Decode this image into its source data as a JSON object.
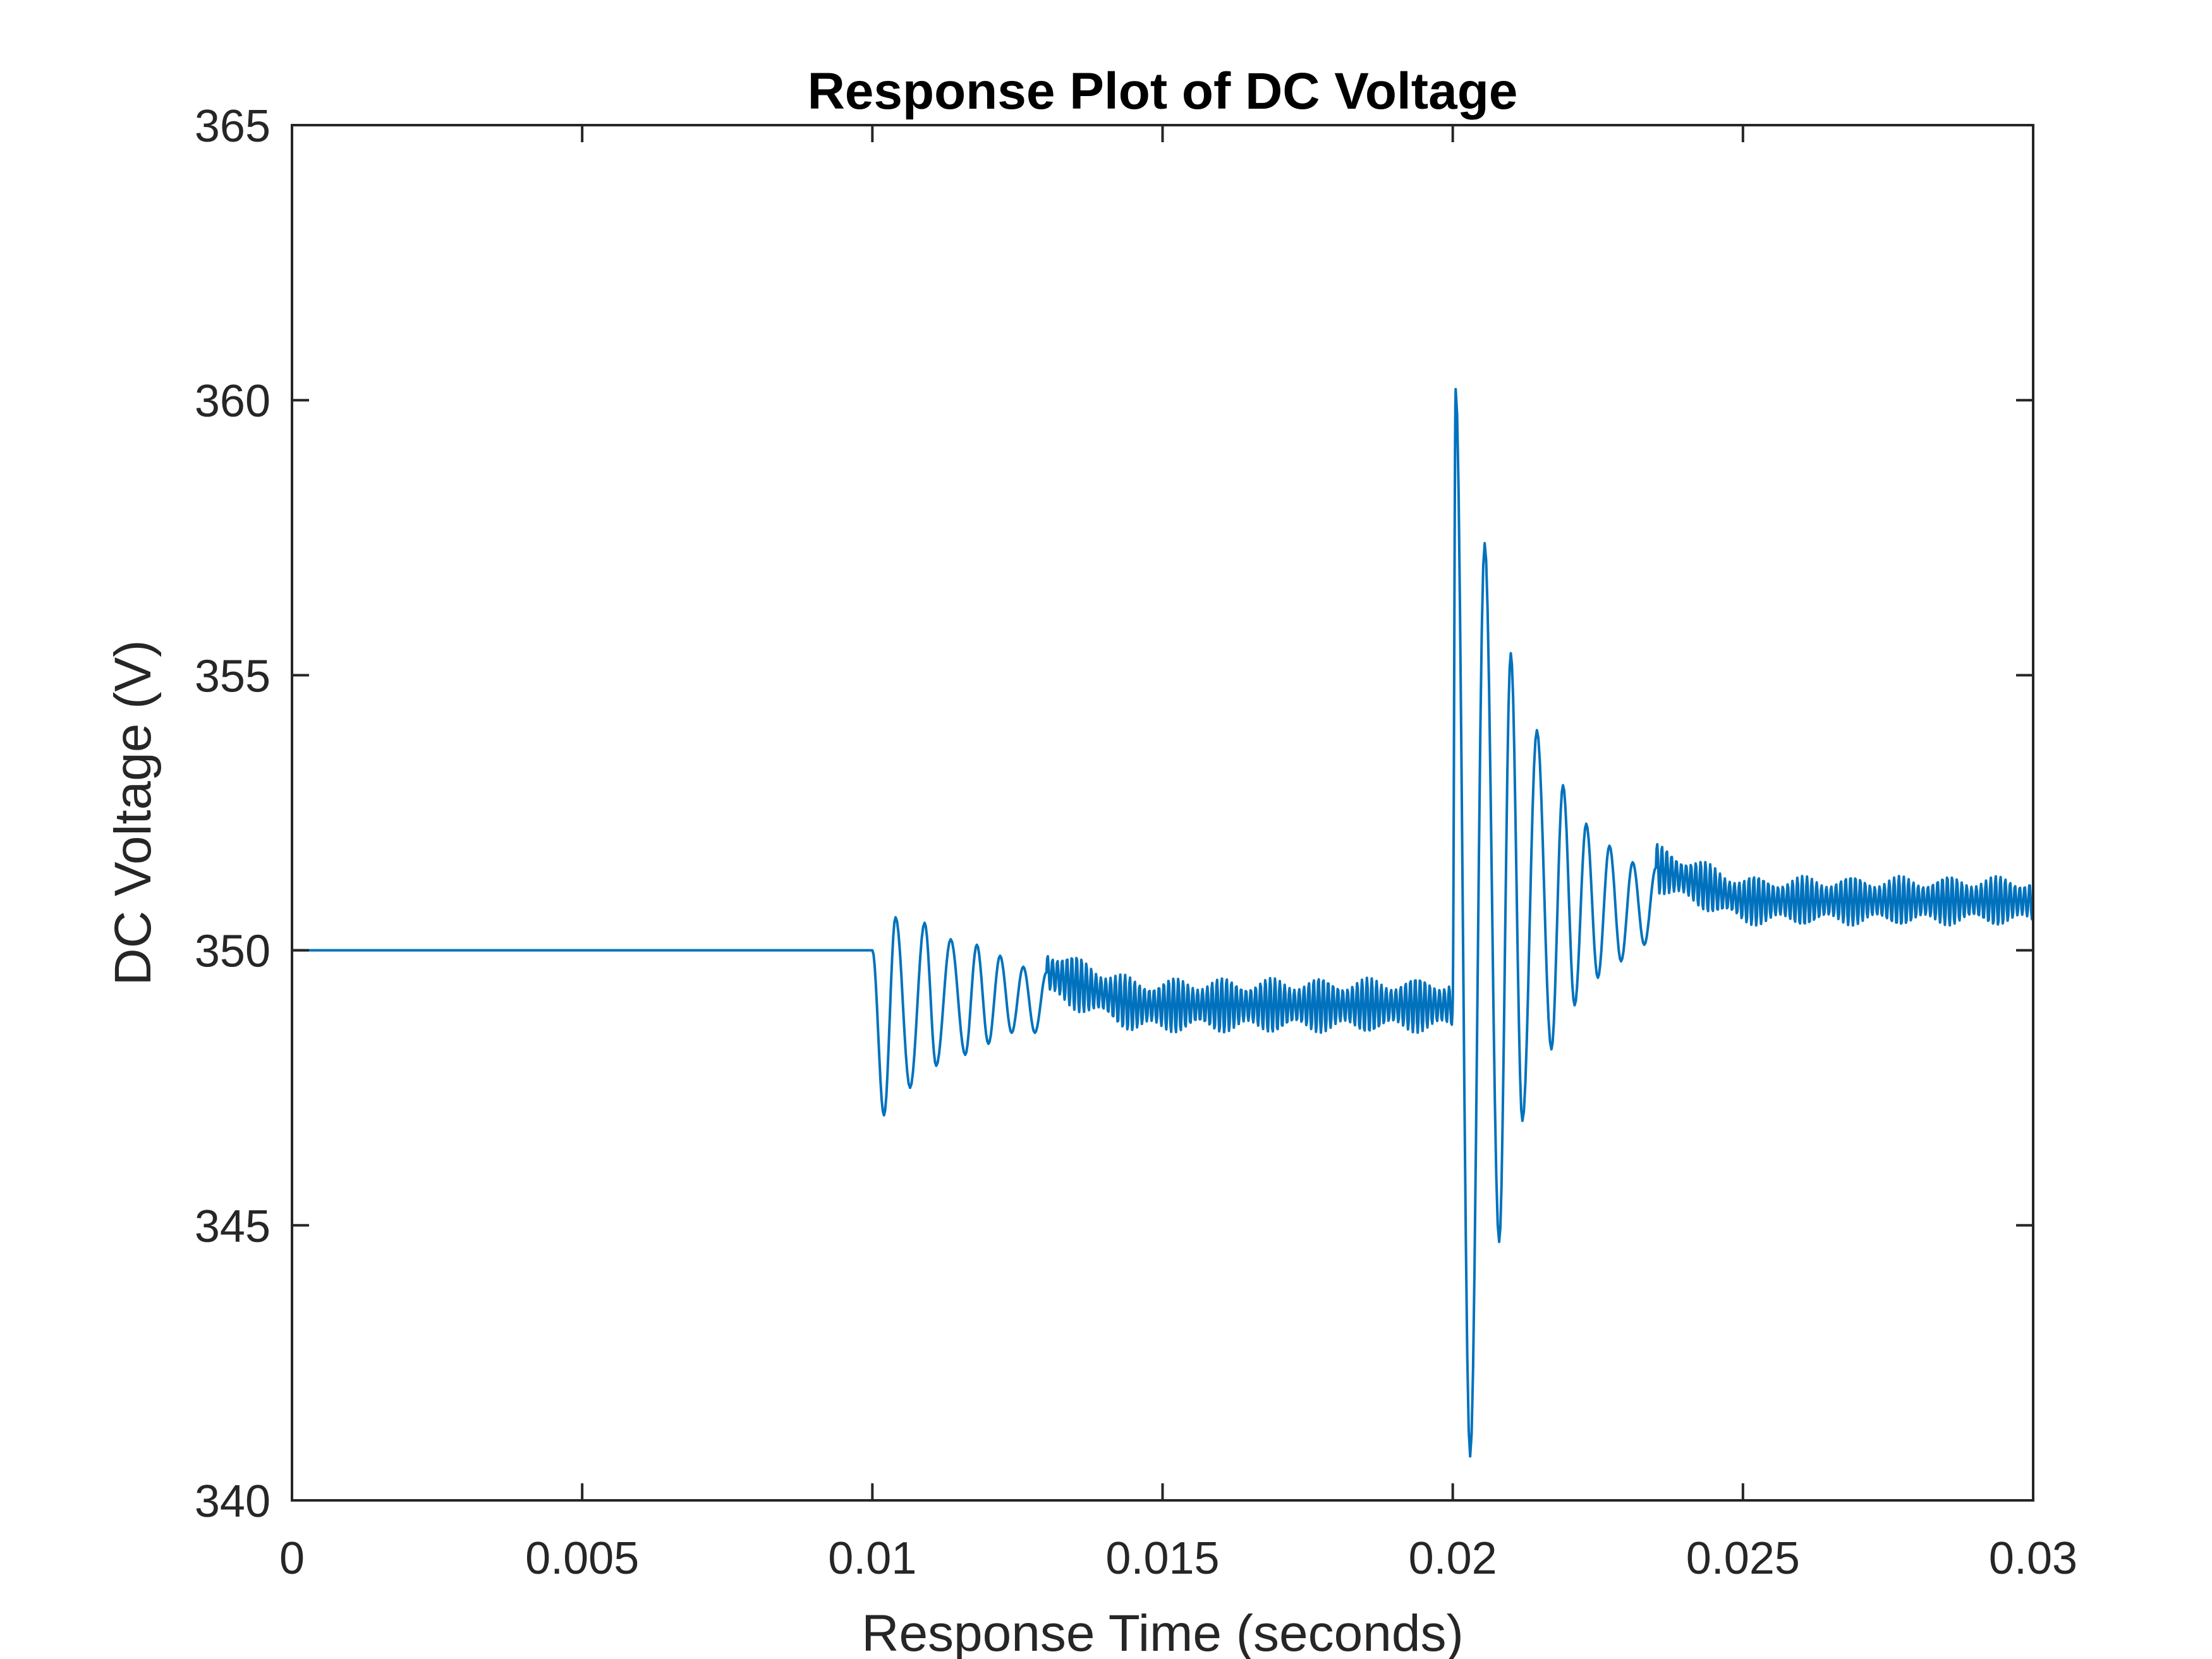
{
  "chart_data": {
    "type": "line",
    "title": "Response Plot of DC Voltage",
    "xlabel": "Response Time (seconds)",
    "ylabel": "DC Voltage (V)",
    "xlim": [
      0,
      0.03
    ],
    "ylim": [
      340,
      365
    ],
    "xticks": [
      0,
      0.005,
      0.01,
      0.015,
      0.02,
      0.025,
      0.03
    ],
    "xtick_labels": [
      "0",
      "0.005",
      "0.01",
      "0.015",
      "0.02",
      "0.025",
      "0.03"
    ],
    "yticks": [
      340,
      345,
      350,
      355,
      360,
      365
    ],
    "ytick_labels": [
      "340",
      "345",
      "350",
      "355",
      "360",
      "365"
    ],
    "grid": false,
    "box": true,
    "series_color": "#0072BD",
    "phases": [
      {
        "t_start": 0,
        "t_end": 0.01,
        "mean": 350.0
      },
      {
        "t_start": 0.01,
        "t_end": 0.02,
        "mean": 349.0,
        "first_dip": 347.0,
        "first_peak": 350.6,
        "ripple_amplitude": 0.5
      },
      {
        "t_start": 0.02,
        "t_end": 0.03,
        "mean": 350.9,
        "first_peak": 360.2,
        "first_dip": 340.8,
        "ripple_amplitude": 0.45
      }
    ],
    "transient_extrema": [
      {
        "t": 0.0102,
        "v": 347.0
      },
      {
        "t": 0.0104,
        "v": 350.6
      },
      {
        "t": 0.01065,
        "v": 347.5
      },
      {
        "t": 0.0109,
        "v": 350.5
      },
      {
        "t": 0.0111,
        "v": 347.9
      },
      {
        "t": 0.01135,
        "v": 350.2
      },
      {
        "t": 0.0116,
        "v": 348.1
      },
      {
        "t": 0.0118,
        "v": 350.1
      },
      {
        "t": 0.012,
        "v": 348.3
      },
      {
        "t": 0.0122,
        "v": 349.9
      },
      {
        "t": 0.0124,
        "v": 348.5
      },
      {
        "t": 0.0126,
        "v": 349.7
      },
      {
        "t": 0.0128,
        "v": 348.5
      },
      {
        "t": 0.013,
        "v": 349.6
      },
      {
        "t": 0.02005,
        "v": 360.2
      },
      {
        "t": 0.0203,
        "v": 340.8
      },
      {
        "t": 0.02055,
        "v": 357.4
      },
      {
        "t": 0.0208,
        "v": 344.7
      },
      {
        "t": 0.021,
        "v": 355.4
      },
      {
        "t": 0.0212,
        "v": 346.9
      },
      {
        "t": 0.02145,
        "v": 354.0
      },
      {
        "t": 0.0217,
        "v": 348.2
      },
      {
        "t": 0.0219,
        "v": 353.0
      },
      {
        "t": 0.0221,
        "v": 349.0
      },
      {
        "t": 0.0223,
        "v": 352.3
      },
      {
        "t": 0.0225,
        "v": 349.5
      },
      {
        "t": 0.0227,
        "v": 351.9
      },
      {
        "t": 0.0229,
        "v": 349.8
      },
      {
        "t": 0.0231,
        "v": 351.6
      },
      {
        "t": 0.0233,
        "v": 350.1
      },
      {
        "t": 0.0235,
        "v": 351.5
      }
    ]
  }
}
